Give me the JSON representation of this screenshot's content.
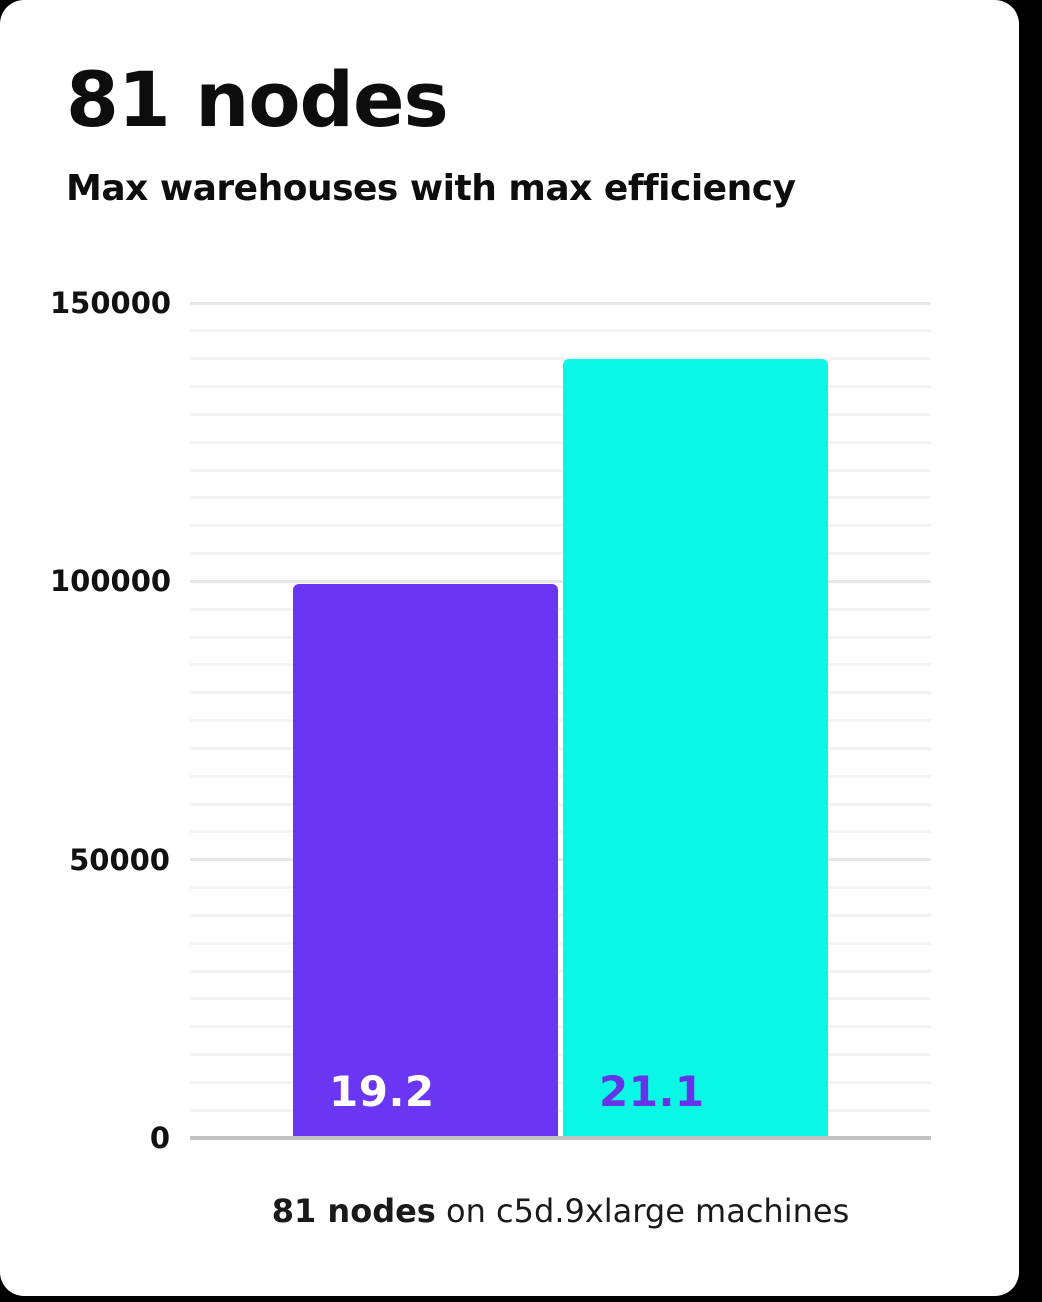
{
  "chart_data": {
    "type": "bar",
    "title": "81 nodes",
    "subtitle": "Max warehouses with max efficiency",
    "caption_bold": "81 nodes",
    "caption_rest": " on c5d.9xlarge machines",
    "ylabel": "",
    "xlabel": "",
    "ylim": [
      0,
      150000
    ],
    "ytick_labels": [
      "0",
      "50000",
      "100000",
      "150000"
    ],
    "ytick_values": [
      0,
      50000,
      100000,
      150000
    ],
    "minor_grid_step": 5000,
    "grid": "on",
    "legend": "none",
    "bars": [
      {
        "bar_label": "19.2",
        "value": 99500,
        "color": "#6b35f4",
        "label_color": "#ffffff"
      },
      {
        "bar_label": "21.1",
        "value": 140000,
        "color": "#0bf7e6",
        "label_color": "#6733e8"
      }
    ],
    "colors": {
      "background": "#000000",
      "card": "#ffffff",
      "text": "#0d0d0d",
      "gridline_minor": "#f3f3f3",
      "gridline_major": "#e7e7e7",
      "axis_line": "#c2c2c2"
    }
  }
}
